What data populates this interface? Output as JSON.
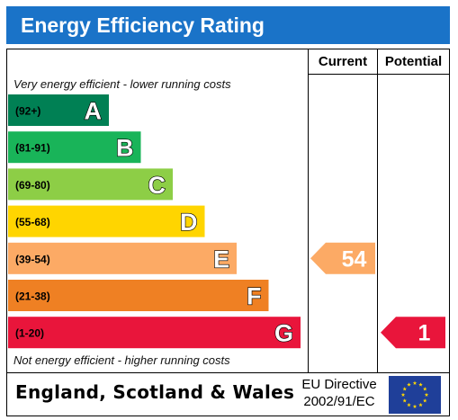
{
  "title": "Energy Efficiency Rating",
  "columns": {
    "current": "Current",
    "potential": "Potential"
  },
  "notes": {
    "top": "Very energy efficient - lower running costs",
    "bottom": "Not energy efficient - higher running costs"
  },
  "footer": {
    "country": "England, Scotland & Wales",
    "directive_line1": "EU Directive",
    "directive_line2": "2002/91/EC"
  },
  "colors": {
    "title_bar": "#1a73c8",
    "eu_flag": "#1f3f99",
    "eu_star": "#ffd700"
  },
  "chart_data": {
    "type": "bar",
    "title": "Energy Efficiency Rating",
    "categories": [
      "A",
      "B",
      "C",
      "D",
      "E",
      "F",
      "G"
    ],
    "ranges": [
      "(92+)",
      "(81-91)",
      "(69-80)",
      "(55-68)",
      "(39-54)",
      "(21-38)",
      "(1-20)"
    ],
    "band_colors": [
      "#008054",
      "#19b459",
      "#8dce46",
      "#ffd500",
      "#fcaa65",
      "#ef8023",
      "#e9153b"
    ],
    "current": {
      "value": 54,
      "band": "E",
      "color": "#fcaa65"
    },
    "potential": {
      "value": 1,
      "band": "G",
      "color": "#e9153b"
    }
  }
}
